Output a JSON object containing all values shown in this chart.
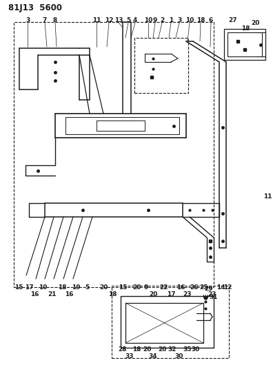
{
  "title": "81J13  5600",
  "bg_color": "#ffffff",
  "line_color": "#1a1a1a",
  "fig_width": 3.96,
  "fig_height": 5.33,
  "dpi": 100
}
